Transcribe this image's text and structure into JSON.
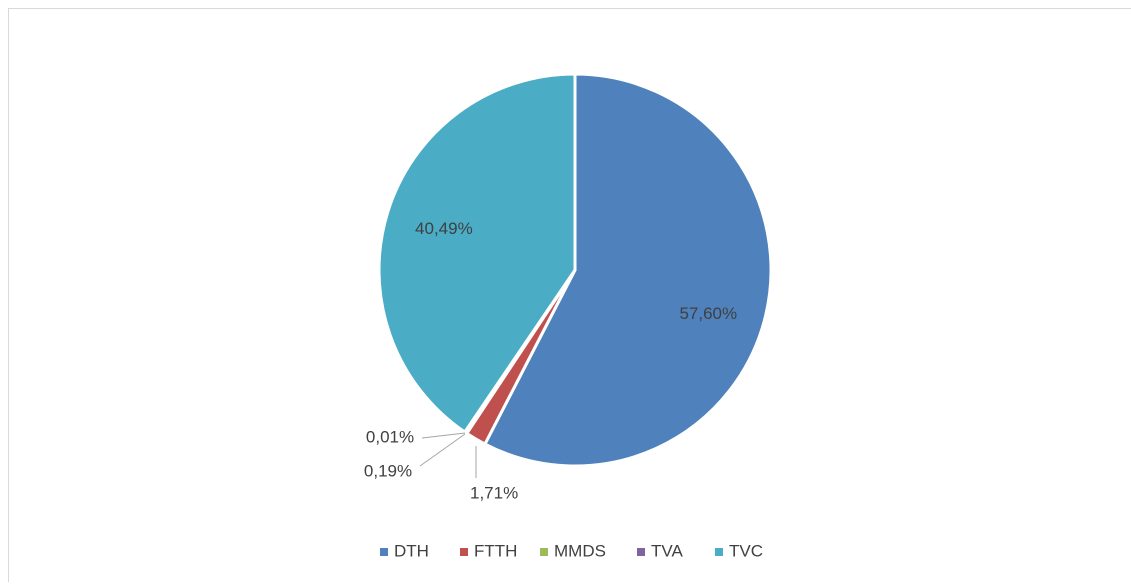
{
  "chart_data": {
    "type": "pie",
    "categories": [
      "DTH",
      "FTTH",
      "MMDS",
      "TVA",
      "TVC"
    ],
    "values": [
      57.6,
      1.71,
      0.19,
      0.01,
      40.49
    ],
    "value_labels": [
      "57,60%",
      "1,71%",
      "0,19%",
      "0,01%",
      "40,49%"
    ],
    "colors": [
      "#4f81bd",
      "#c0504d",
      "#9bbb59",
      "#8064a2",
      "#4bacc6"
    ],
    "legend": "bottom"
  }
}
